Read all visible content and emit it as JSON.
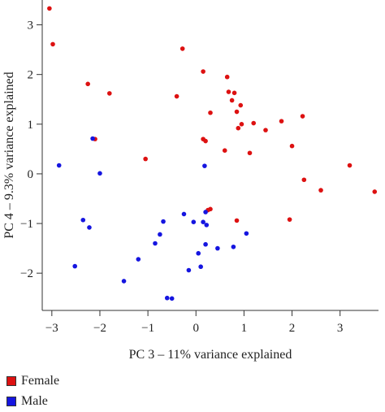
{
  "chart_data": {
    "type": "scatter",
    "xlabel": "PC 3 – 11% variance explained",
    "ylabel": "PC 4 – 9.3% variance explained",
    "xlim": [
      -3.2,
      3.8
    ],
    "ylim": [
      -2.75,
      3.5
    ],
    "xticks": [
      -3,
      -2,
      -1,
      0,
      1,
      2,
      3
    ],
    "yticks": [
      -2,
      -1,
      0,
      1,
      2,
      3
    ],
    "grid": false,
    "legend_position": "bottom-left",
    "series": [
      {
        "name": "Female",
        "color": "#dd1111",
        "points": [
          [
            -3.05,
            3.33
          ],
          [
            -2.98,
            2.61
          ],
          [
            -2.25,
            1.81
          ],
          [
            -1.8,
            1.62
          ],
          [
            -2.1,
            0.7
          ],
          [
            -1.05,
            0.3
          ],
          [
            -0.28,
            2.52
          ],
          [
            -0.4,
            1.56
          ],
          [
            0.15,
            2.06
          ],
          [
            0.3,
            1.23
          ],
          [
            0.15,
            0.7
          ],
          [
            0.2,
            0.66
          ],
          [
            0.65,
            1.95
          ],
          [
            0.68,
            1.65
          ],
          [
            0.75,
            1.48
          ],
          [
            0.8,
            1.63
          ],
          [
            0.85,
            1.25
          ],
          [
            0.88,
            0.92
          ],
          [
            0.93,
            1.38
          ],
          [
            0.95,
            1.0
          ],
          [
            0.6,
            0.47
          ],
          [
            1.2,
            1.02
          ],
          [
            1.45,
            0.88
          ],
          [
            1.12,
            0.42
          ],
          [
            1.78,
            1.06
          ],
          [
            2.22,
            1.16
          ],
          [
            2.0,
            0.56
          ],
          [
            2.25,
            -0.12
          ],
          [
            2.6,
            -0.33
          ],
          [
            3.2,
            0.17
          ],
          [
            3.72,
            -0.36
          ],
          [
            0.25,
            -0.73
          ],
          [
            0.3,
            -0.71
          ],
          [
            0.85,
            -0.94
          ],
          [
            1.95,
            -0.92
          ]
        ]
      },
      {
        "name": "Male",
        "color": "#1515e0",
        "points": [
          [
            -2.85,
            0.17
          ],
          [
            -2.15,
            0.71
          ],
          [
            -2.0,
            0.01
          ],
          [
            -2.35,
            -0.93
          ],
          [
            -2.22,
            -1.08
          ],
          [
            -2.52,
            -1.86
          ],
          [
            -1.5,
            -2.16
          ],
          [
            -1.2,
            -1.72
          ],
          [
            -0.85,
            -1.4
          ],
          [
            -0.75,
            -1.22
          ],
          [
            -0.68,
            -0.96
          ],
          [
            -0.25,
            -0.81
          ],
          [
            -0.05,
            -0.97
          ],
          [
            0.15,
            -0.97
          ],
          [
            0.22,
            -1.03
          ],
          [
            -0.6,
            -2.5
          ],
          [
            -0.5,
            -2.51
          ],
          [
            0.05,
            -1.6
          ],
          [
            -0.15,
            -1.94
          ],
          [
            0.1,
            -1.87
          ],
          [
            0.2,
            -1.42
          ],
          [
            0.45,
            -1.5
          ],
          [
            0.78,
            -1.47
          ],
          [
            1.05,
            -1.2
          ],
          [
            0.2,
            -0.77
          ],
          [
            0.18,
            0.16
          ]
        ]
      }
    ]
  },
  "legend": {
    "female_label": "Female",
    "male_label": "Male",
    "female_color": "#dd1111",
    "male_color": "#1515e0"
  }
}
